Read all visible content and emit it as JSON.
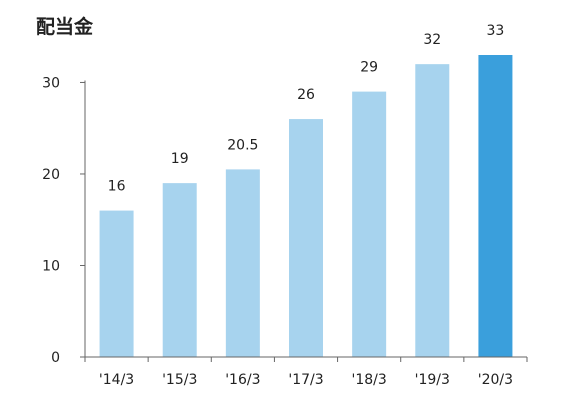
{
  "title": "配当金",
  "colors": {
    "bar": "#a7d3ee",
    "bar_highlight": "#3a9fdc",
    "axis": "#666666",
    "text": "#222222"
  },
  "chart_data": {
    "type": "bar",
    "title": "配当金",
    "xlabel": "",
    "ylabel": "",
    "categories": [
      "'14/3",
      "'15/3",
      "'16/3",
      "'17/3",
      "'18/3",
      "'19/3",
      "'20/3"
    ],
    "values": [
      16,
      19,
      20.5,
      26,
      29,
      32,
      33
    ],
    "data_labels": [
      "16",
      "19",
      "20.5",
      "26",
      "29",
      "32",
      "33"
    ],
    "highlight_index": 6,
    "ylim": [
      0,
      35
    ],
    "yticks": [
      0,
      10,
      20,
      30
    ],
    "grid": false,
    "legend": "none"
  }
}
